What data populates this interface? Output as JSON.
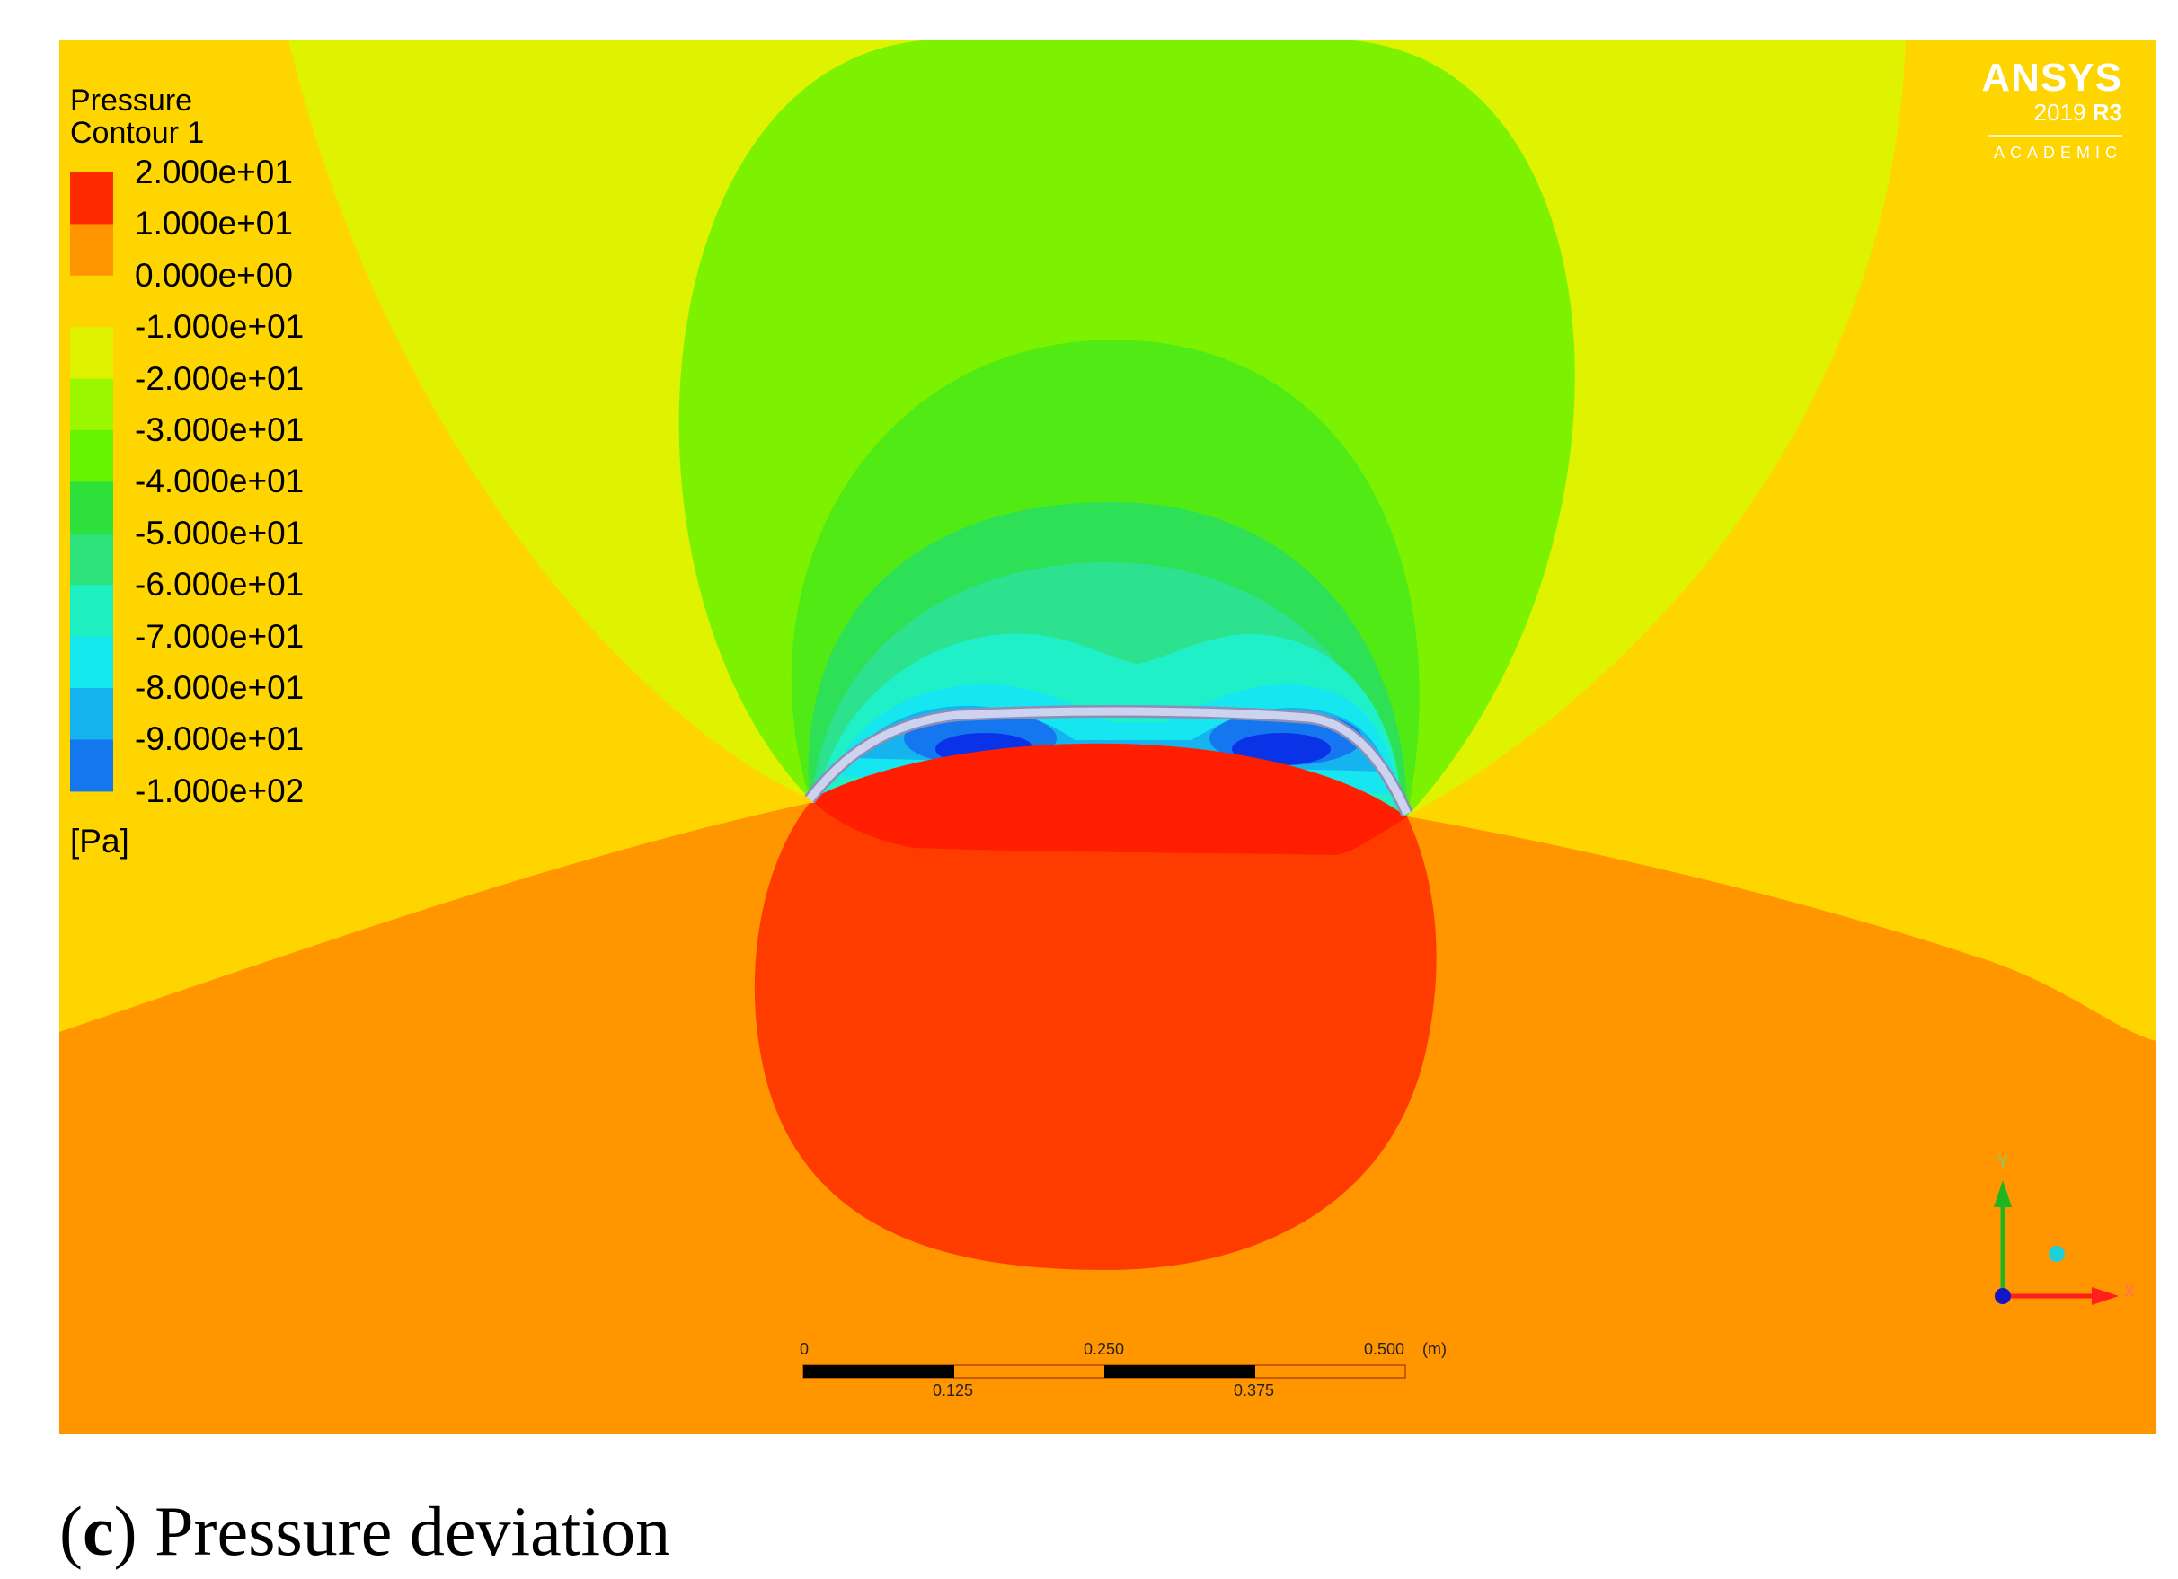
{
  "legend": {
    "title_line1": "Pressure",
    "title_line2": "Contour 1",
    "unit": "[Pa]",
    "levels": [
      "2.000e+01",
      "1.000e+01",
      "0.000e+00",
      "-1.000e+01",
      "-2.000e+01",
      "-3.000e+01",
      "-4.000e+01",
      "-5.000e+01",
      "-6.000e+01",
      "-7.000e+01",
      "-8.000e+01",
      "-9.000e+01",
      "-1.000e+02"
    ],
    "colors": [
      "#ff2a00",
      "#ff9500",
      "#ffd500",
      "#dff200",
      "#9af700",
      "#66f200",
      "#2ee03a",
      "#2de27a",
      "#1ff0c2",
      "#15e8ef",
      "#15b4ef",
      "#1577ef",
      "#0a33e8"
    ]
  },
  "brand": {
    "name": "ANSYS",
    "version_year": "2019",
    "version_release": "R3",
    "edition": "ACADEMIC"
  },
  "scale_bar": {
    "top_labels": [
      "0",
      "0.250",
      "0.500",
      "(m)"
    ],
    "bottom_labels": [
      "0.125",
      "0.375"
    ]
  },
  "axes": {
    "y_label": "Y",
    "x_label": "X"
  },
  "caption": {
    "letter": "c",
    "text": "Pressure deviation"
  },
  "colors": {
    "orange_field": "#ff9600",
    "yellow_field": "#ffd500",
    "lime_field": "#dff200",
    "green_field": "#7cf200",
    "red_zone": "#ff3c00",
    "blade": "#c5cbe6"
  }
}
